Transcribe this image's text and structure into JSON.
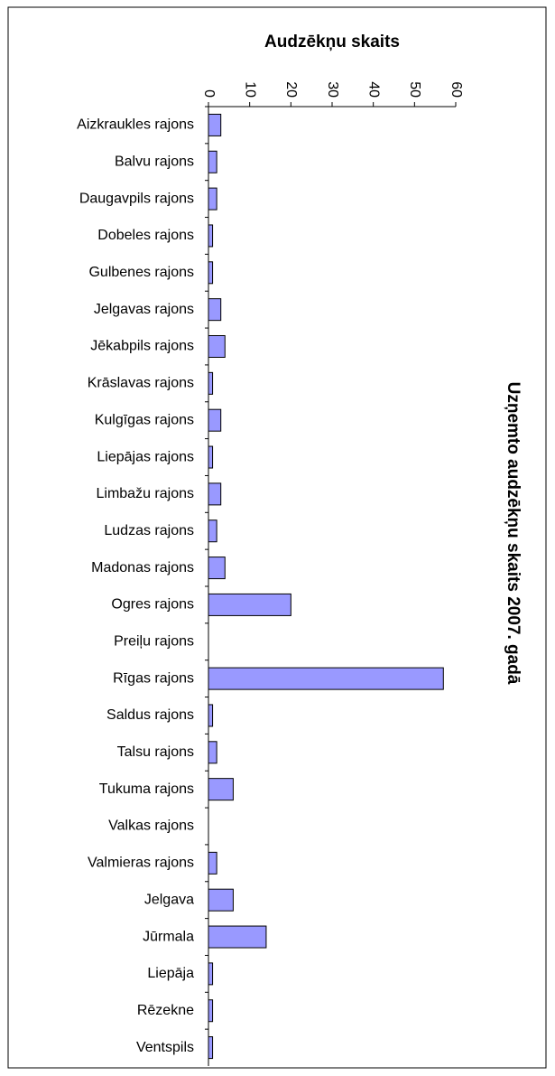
{
  "chart_data": {
    "type": "bar",
    "orientation": "horizontal",
    "title": "Uzņemto audzēkņu skaits 2007. gadā",
    "x_label": "Audzēkņu skaits",
    "categories": [
      "Aizkraukles rajons",
      "Balvu rajons",
      "Daugavpils rajons",
      "Dobeles rajons",
      "Gulbenes rajons",
      "Jelgavas rajons",
      "Jēkabpils rajons",
      "Krāslavas rajons",
      "Kulgīgas rajons",
      "Liepājas rajons",
      "Limbažu rajons",
      "Ludzas rajons",
      "Madonas rajons",
      "Ogres rajons",
      "Preiļu rajons",
      "Rīgas rajons",
      "Saldus rajons",
      "Talsu rajons",
      "Tukuma rajons",
      "Valkas rajons",
      "Valmieras rajons",
      "Jelgava",
      "Jūrmala",
      "Liepāja",
      "Rēzekne",
      "Ventspils"
    ],
    "values": [
      3,
      2,
      2,
      1,
      1,
      3,
      4,
      1,
      3,
      1,
      3,
      2,
      4,
      20,
      0,
      57,
      1,
      2,
      6,
      0,
      2,
      6,
      14,
      1,
      1,
      1
    ],
    "color": "#9999ff",
    "xlim": [
      0,
      60
    ],
    "xticks": [
      0,
      10,
      20,
      30,
      40,
      50,
      60
    ],
    "grid": false
  }
}
